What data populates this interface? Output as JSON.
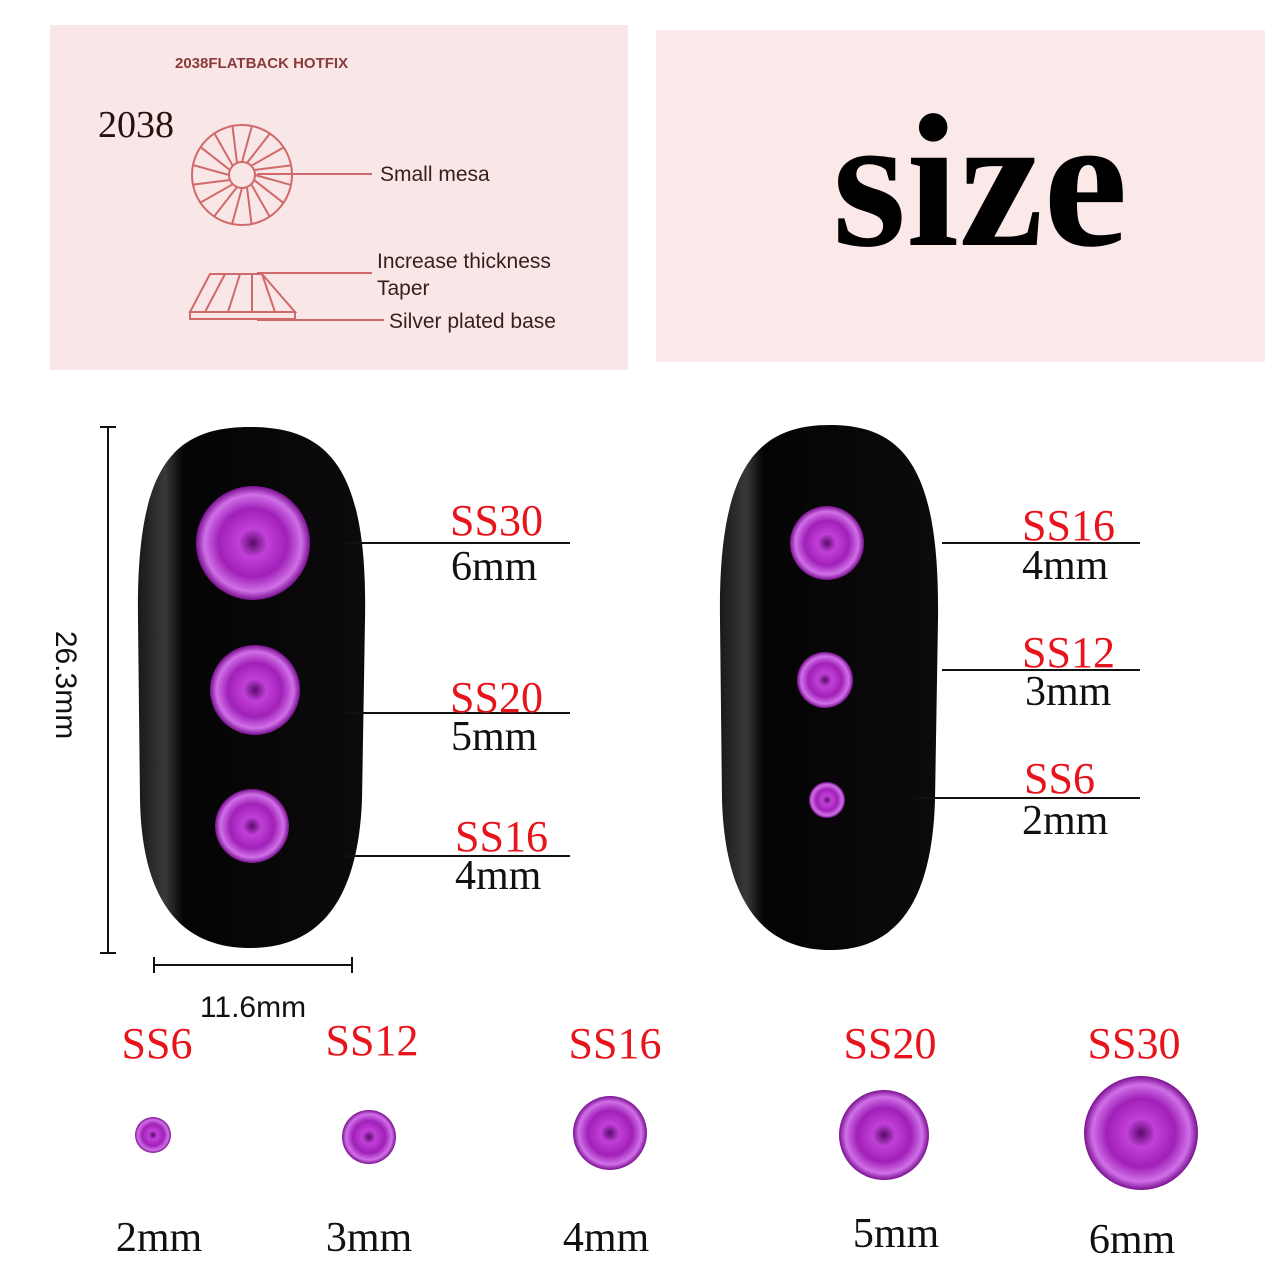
{
  "diagram_panel": {
    "title": "2038FLATBACK HOTFIX",
    "model": "2038",
    "labels": [
      "Small mesa",
      "Increase thickness",
      "Taper",
      "Silver plated base"
    ]
  },
  "headline": "size",
  "nail_dimensions": {
    "height": "26.3mm",
    "width": "11.6mm"
  },
  "left_nail": [
    {
      "code": "SS30",
      "size": "6mm"
    },
    {
      "code": "SS20",
      "size": "5mm"
    },
    {
      "code": "SS16",
      "size": "4mm"
    }
  ],
  "right_nail": [
    {
      "code": "SS16",
      "size": "4mm"
    },
    {
      "code": "SS12",
      "size": "3mm"
    },
    {
      "code": "SS6",
      "size": "2mm"
    }
  ],
  "size_row": [
    {
      "code": "SS6",
      "size": "2mm"
    },
    {
      "code": "SS12",
      "size": "3mm"
    },
    {
      "code": "SS16",
      "size": "4mm"
    },
    {
      "code": "SS20",
      "size": "5mm"
    },
    {
      "code": "SS30",
      "size": "6mm"
    }
  ],
  "colors": {
    "panel": "#f9e6e6",
    "diagram_line": "#d06a6a",
    "code_label": "#e8141c",
    "gem": "#b22cc4",
    "nail": "#0c0a0c"
  }
}
